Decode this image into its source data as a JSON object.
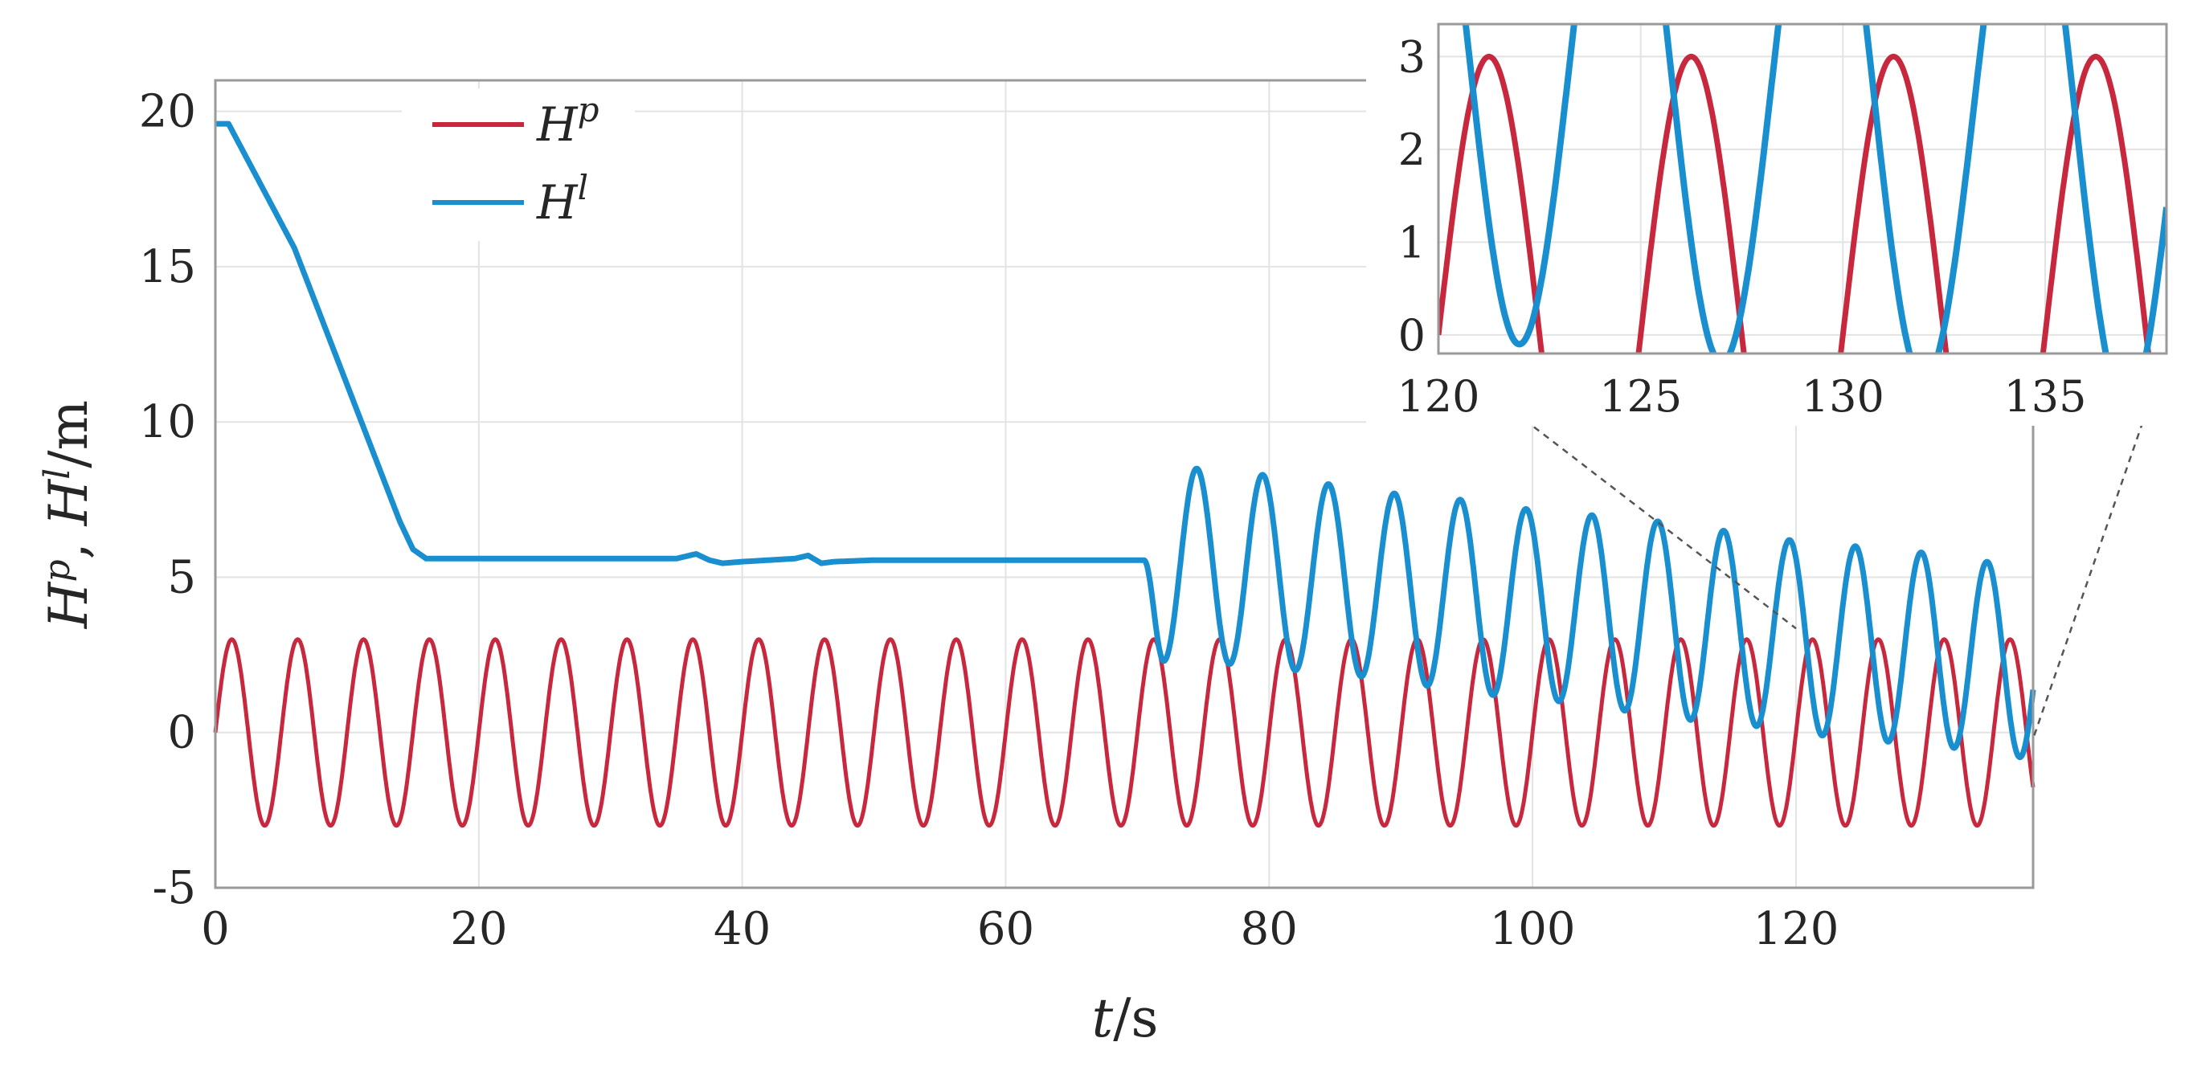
{
  "chart_data": {
    "type": "line",
    "xlabel": "t/s",
    "ylabel": "H^p, H^l/m",
    "xlim": [
      0,
      138
    ],
    "ylim": [
      -5,
      21
    ],
    "xticks": [
      0,
      20,
      40,
      60,
      80,
      100,
      120
    ],
    "yticks": [
      -5,
      0,
      5,
      10,
      15,
      20
    ],
    "xtick_labels": [
      "0",
      "20",
      "40",
      "60",
      "80",
      "100",
      "120"
    ],
    "ytick_labels": [
      "-5",
      "0",
      "5",
      "10",
      "15",
      "20"
    ],
    "grid": true,
    "legend": {
      "position": "top-left",
      "entries": [
        {
          "label": "H",
          "sup": "p"
        },
        {
          "label": "H",
          "sup": "l"
        }
      ]
    },
    "series": [
      {
        "name": "Hp",
        "color": "#c8283e",
        "description": "sinusoid amplitude 3 m, period 5 s",
        "amplitude": 3,
        "period": 5,
        "offset": 0
      },
      {
        "name": "Hl",
        "color": "#1a8fd0",
        "x": [
          0,
          1,
          2,
          4,
          6,
          8,
          10,
          12,
          14,
          15,
          16,
          18,
          20,
          25,
          30,
          35,
          36.5,
          37.5,
          38.5,
          40,
          44,
          45,
          46,
          47,
          50,
          55,
          60,
          65,
          70,
          70.5
        ],
        "y": [
          19.6,
          19.6,
          18.8,
          17.2,
          15.6,
          13.4,
          11.2,
          9.0,
          6.8,
          5.9,
          5.6,
          5.6,
          5.6,
          5.6,
          5.6,
          5.6,
          5.75,
          5.55,
          5.45,
          5.5,
          5.6,
          5.7,
          5.45,
          5.5,
          5.55,
          5.55,
          5.55,
          5.55,
          5.55,
          5.55
        ],
        "oscillation": {
          "start": 70.5,
          "end": 138,
          "period": 5,
          "peak_times": [
            74.5,
            79.5,
            84.5,
            89.5,
            94.5,
            99.5,
            104.5,
            109.5,
            114.5,
            119.5,
            124.5,
            129.5,
            134.5
          ],
          "peaks": [
            8.5,
            8.3,
            8.0,
            7.7,
            7.5,
            7.2,
            7.0,
            6.8,
            6.5,
            6.2,
            6.0,
            5.8,
            5.5
          ],
          "trough_times": [
            72,
            77,
            82,
            87,
            92,
            97,
            102,
            107,
            112,
            117,
            122,
            127,
            132,
            137
          ],
          "troughs": [
            2.3,
            2.2,
            2.0,
            1.8,
            1.5,
            1.2,
            1.0,
            0.7,
            0.4,
            0.2,
            -0.1,
            -0.3,
            -0.5,
            -0.8
          ]
        }
      }
    ],
    "inset": {
      "xlim": [
        120,
        138
      ],
      "ylim": [
        -0.2,
        3.35
      ],
      "xticks": [
        120,
        125,
        130,
        135
      ],
      "yticks": [
        0,
        1,
        2,
        3
      ],
      "xtick_labels": [
        "120",
        "125",
        "130",
        "135"
      ],
      "ytick_labels": [
        "0",
        "1",
        "2",
        "3"
      ],
      "source_region_x": [
        120,
        138
      ],
      "source_region_y": [
        -0.2,
        3.35
      ]
    }
  }
}
